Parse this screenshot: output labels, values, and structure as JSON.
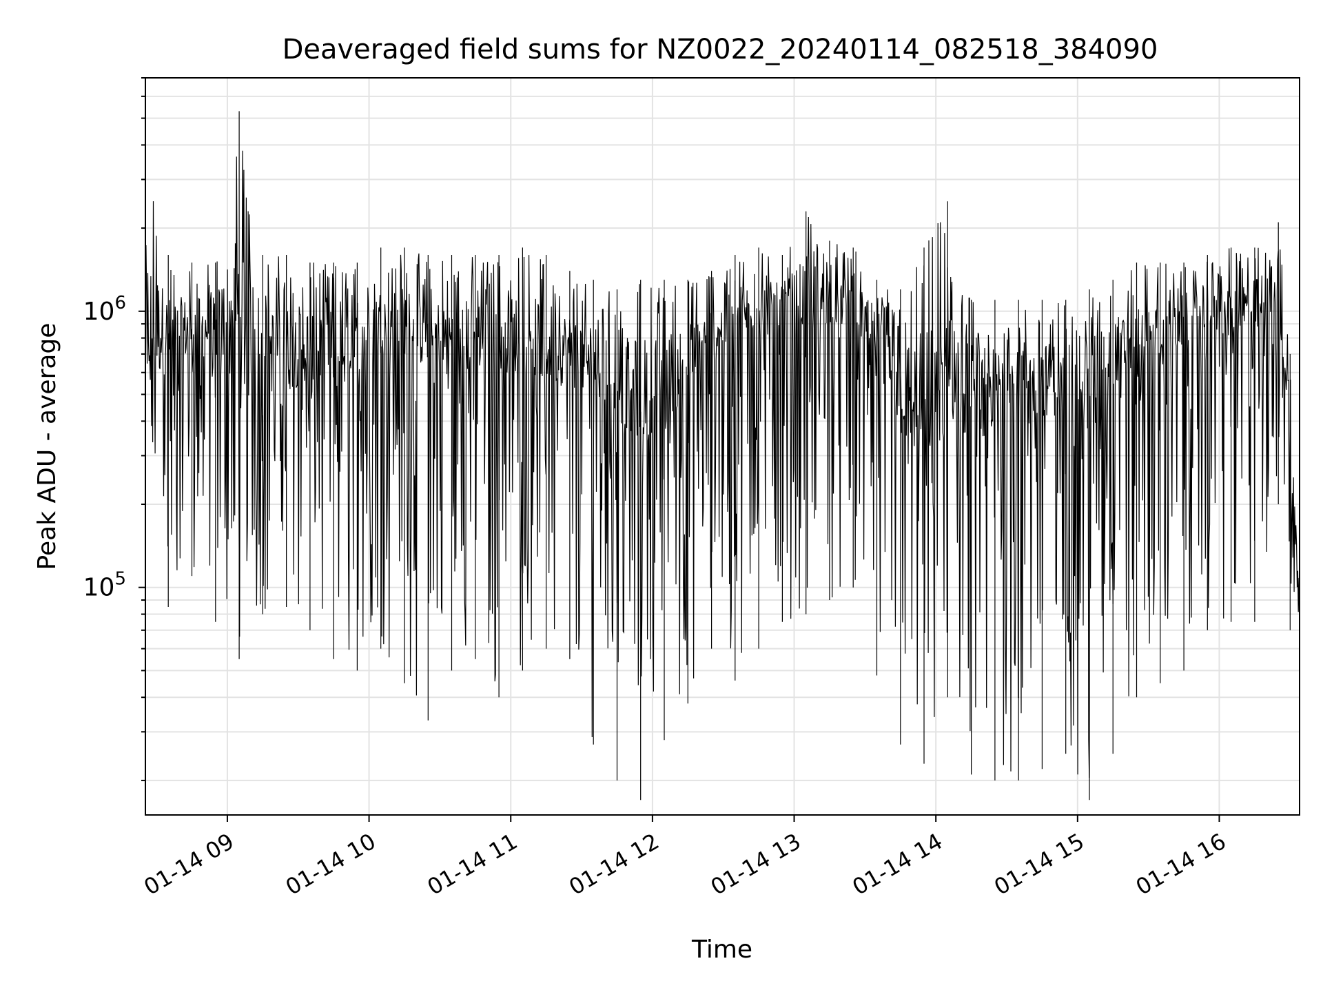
{
  "chart_data": {
    "type": "line",
    "title": "Deaveraged field sums for NZ0022_20240114_082518_384090",
    "xlabel": "Time",
    "ylabel": "Peak ADU - average",
    "yscale": "log",
    "ylim": [
      15000,
      7000000
    ],
    "grid": "on (major and minor)",
    "legend": "none",
    "line_color": "#000000",
    "x_ticks": [
      {
        "label": "01-14 09",
        "time": "2024-01-14T09:00"
      },
      {
        "label": "01-14 10",
        "time": "2024-01-14T10:00"
      },
      {
        "label": "01-14 11",
        "time": "2024-01-14T11:00"
      },
      {
        "label": "01-14 12",
        "time": "2024-01-14T12:00"
      },
      {
        "label": "01-14 13",
        "time": "2024-01-14T13:00"
      },
      {
        "label": "01-14 14",
        "time": "2024-01-14T14:00"
      },
      {
        "label": "01-14 15",
        "time": "2024-01-14T15:00"
      },
      {
        "label": "01-14 16",
        "time": "2024-01-14T16:00"
      }
    ],
    "y_ticks": [
      {
        "base": "10",
        "exp": "5",
        "value": 100000
      },
      {
        "base": "10",
        "exp": "6",
        "value": 1000000
      }
    ],
    "xlim": [
      "2024-01-14T08:25:18",
      "2024-01-14T16:34:00"
    ],
    "x": [
      "2024-01-14T08:25:18",
      "2024-01-14T08:35:00",
      "2024-01-14T08:45:00",
      "2024-01-14T08:55:00",
      "2024-01-14T09:05:00",
      "2024-01-14T09:15:00",
      "2024-01-14T09:25:00",
      "2024-01-14T09:35:00",
      "2024-01-14T09:45:00",
      "2024-01-14T09:55:00",
      "2024-01-14T10:05:00",
      "2024-01-14T10:15:00",
      "2024-01-14T10:25:00",
      "2024-01-14T10:35:00",
      "2024-01-14T10:45:00",
      "2024-01-14T10:55:00",
      "2024-01-14T11:05:00",
      "2024-01-14T11:15:00",
      "2024-01-14T11:25:00",
      "2024-01-14T11:35:00",
      "2024-01-14T11:45:00",
      "2024-01-14T11:55:00",
      "2024-01-14T12:05:00",
      "2024-01-14T12:15:00",
      "2024-01-14T12:25:00",
      "2024-01-14T12:35:00",
      "2024-01-14T12:45:00",
      "2024-01-14T12:55:00",
      "2024-01-14T13:05:00",
      "2024-01-14T13:15:00",
      "2024-01-14T13:25:00",
      "2024-01-14T13:35:00",
      "2024-01-14T13:45:00",
      "2024-01-14T13:55:00",
      "2024-01-14T14:05:00",
      "2024-01-14T14:15:00",
      "2024-01-14T14:25:00",
      "2024-01-14T14:35:00",
      "2024-01-14T14:45:00",
      "2024-01-14T14:55:00",
      "2024-01-14T15:05:00",
      "2024-01-14T15:15:00",
      "2024-01-14T15:25:00",
      "2024-01-14T15:35:00",
      "2024-01-14T15:45:00",
      "2024-01-14T15:55:00",
      "2024-01-14T16:05:00",
      "2024-01-14T16:15:00",
      "2024-01-14T16:25:00",
      "2024-01-14T16:30:00",
      "2024-01-14T16:34:00"
    ],
    "upper_envelope": [
      3500000,
      1600000,
      1500000,
      1500000,
      5300000,
      1600000,
      1600000,
      1500000,
      1500000,
      1500000,
      1700000,
      1700000,
      1600000,
      1600000,
      1600000,
      1600000,
      1700000,
      1600000,
      1400000,
      1300000,
      1200000,
      1300000,
      1300000,
      1300000,
      1400000,
      1600000,
      1700000,
      1600000,
      2300000,
      1800000,
      1700000,
      1300000,
      1200000,
      1700000,
      2500000,
      1100000,
      1100000,
      1100000,
      1100000,
      1100000,
      1200000,
      1300000,
      1500000,
      1500000,
      1500000,
      1600000,
      1700000,
      1700000,
      2100000,
      700000,
      150000
    ],
    "typical": [
      900000,
      800000,
      850000,
      850000,
      900000,
      700000,
      700000,
      750000,
      700000,
      700000,
      900000,
      900000,
      800000,
      750000,
      800000,
      800000,
      800000,
      750000,
      700000,
      650000,
      550000,
      500000,
      550000,
      650000,
      800000,
      950000,
      1000000,
      1000000,
      1100000,
      1100000,
      1000000,
      800000,
      500000,
      450000,
      650000,
      550000,
      500000,
      550000,
      550000,
      550000,
      600000,
      700000,
      750000,
      800000,
      900000,
      1000000,
      1000000,
      1000000,
      1200000,
      400000,
      80000
    ],
    "lower_envelope": [
      140000,
      85000,
      110000,
      75000,
      55000,
      80000,
      85000,
      70000,
      55000,
      50000,
      60000,
      45000,
      33000,
      50000,
      55000,
      40000,
      50000,
      60000,
      55000,
      27000,
      20000,
      17000,
      28000,
      38000,
      60000,
      46000,
      60000,
      75000,
      80000,
      90000,
      100000,
      48000,
      27000,
      23000,
      40000,
      21000,
      20000,
      20000,
      22000,
      25000,
      17000,
      25000,
      40000,
      45000,
      50000,
      70000,
      75000,
      75000,
      200000,
      70000,
      60000
    ]
  }
}
